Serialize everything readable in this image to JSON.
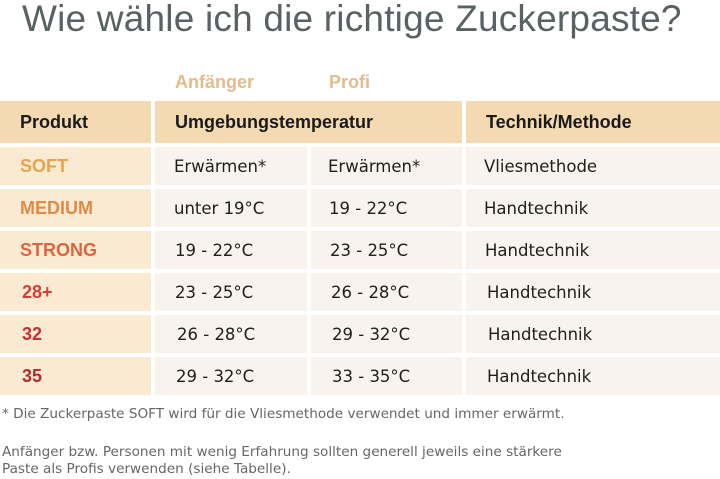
{
  "title": "Wie wähle ich die richtige Zuckerpaste?",
  "levels": {
    "beginner": "Anfänger",
    "pro": "Profi"
  },
  "table": {
    "headers": {
      "product": "Produkt",
      "temperature": "Umgebungstemperatur",
      "technique": "Technik/Methode"
    },
    "rows": [
      {
        "product": "SOFT",
        "color": "#e2a64d",
        "beginner": "Erwärmen*",
        "pro": "Erwärmen*",
        "technique": "Vliesmethode"
      },
      {
        "product": "MEDIUM",
        "color": "#df8a47",
        "beginner": "unter 19°C",
        "pro": "19 - 22°C",
        "technique": "Handtechnik"
      },
      {
        "product": "STRONG",
        "color": "#d9663f",
        "beginner": "19 - 22°C",
        "pro": "23 - 25°C",
        "technique": "Handtechnik"
      },
      {
        "product": "28+",
        "color": "#d0403a",
        "beginner": "23 - 25°C",
        "pro": "26 - 28°C",
        "technique": "Handtechnik"
      },
      {
        "product": "32",
        "color": "#c42f36",
        "beginner": "26 - 28°C",
        "pro": "29 - 32°C",
        "technique": "Handtechnik"
      },
      {
        "product": "35",
        "color": "#b22a2e",
        "beginner": "29 - 32°C",
        "pro": "33 - 35°C",
        "technique": "Handtechnik"
      }
    ]
  },
  "footnote": "* Die Zuckerpaste SOFT wird für die Vliesmethode verwendet und immer erwärmt.",
  "advice": [
    "Anfänger bzw. Personen mit wenig Erfahrung sollten generell jeweils eine stärkere",
    "Paste als Profis verwenden (siehe Tabelle)."
  ]
}
